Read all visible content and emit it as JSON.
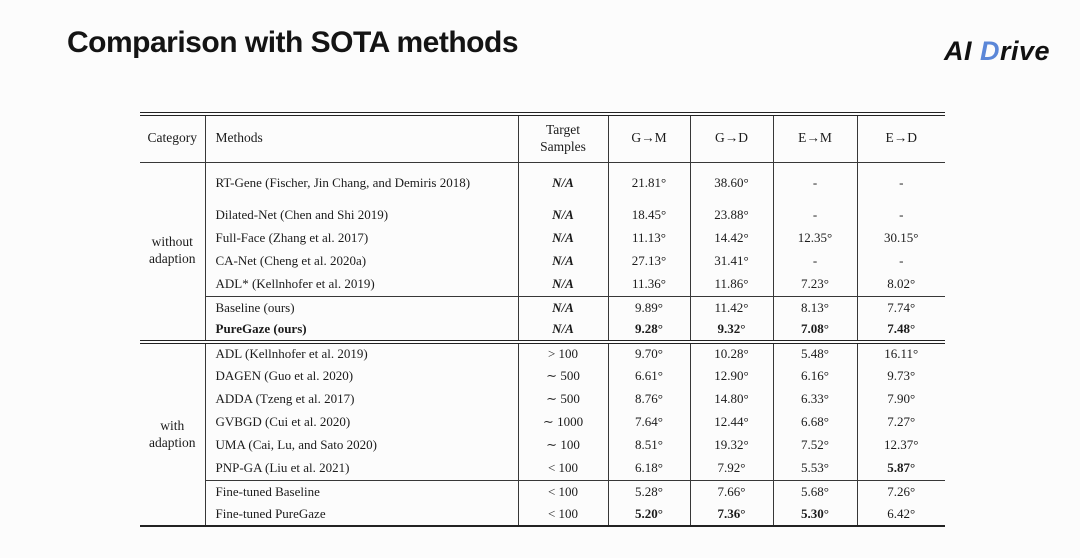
{
  "title": "Comparison with SOTA methods",
  "logo": {
    "prefix": "AI",
    "accent": "D",
    "suffix": "rive",
    "accent_color": "#5b87d8"
  },
  "table": {
    "columns": [
      "Category",
      "Methods",
      "Target Samples",
      "G→M",
      "G→D",
      "E→M",
      "E→D"
    ],
    "sections": [
      {
        "category": "without adaption",
        "rows": [
          {
            "method": "RT-Gene (Fischer, Jin Chang, and Demiris 2018)",
            "samples": "N/A",
            "values": [
              "21.81°",
              "38.60°",
              "-",
              "-"
            ],
            "bold": [
              false,
              false,
              false,
              false
            ],
            "method_bold": false,
            "sep_above": false,
            "tall": true
          },
          {
            "method": "Dilated-Net (Chen and Shi 2019)",
            "samples": "N/A",
            "values": [
              "18.45°",
              "23.88°",
              "-",
              "-"
            ],
            "bold": [
              false,
              false,
              false,
              false
            ],
            "method_bold": false,
            "sep_above": false,
            "tall": false
          },
          {
            "method": "Full-Face (Zhang et al. 2017)",
            "samples": "N/A",
            "values": [
              "11.13°",
              "14.42°",
              "12.35°",
              "30.15°"
            ],
            "bold": [
              false,
              false,
              false,
              false
            ],
            "method_bold": false,
            "sep_above": false,
            "tall": false
          },
          {
            "method": "CA-Net (Cheng et al. 2020a)",
            "samples": "N/A",
            "values": [
              "27.13°",
              "31.41°",
              "-",
              "-"
            ],
            "bold": [
              false,
              false,
              false,
              false
            ],
            "method_bold": false,
            "sep_above": false,
            "tall": false
          },
          {
            "method": "ADL* (Kellnhofer et al. 2019)",
            "samples": "N/A",
            "values": [
              "11.36°",
              "11.86°",
              "7.23°",
              "8.02°"
            ],
            "bold": [
              false,
              false,
              false,
              false
            ],
            "method_bold": false,
            "sep_above": false,
            "tall": false
          },
          {
            "method": "Baseline (ours)",
            "samples": "N/A",
            "values": [
              "9.89°",
              "11.42°",
              "8.13°",
              "7.74°"
            ],
            "bold": [
              false,
              false,
              false,
              false
            ],
            "method_bold": false,
            "sep_above": true,
            "tall": false
          },
          {
            "method": "PureGaze (ours)",
            "samples": "N/A",
            "values": [
              "9.28°",
              "9.32°",
              "7.08°",
              "7.48°"
            ],
            "bold": [
              true,
              true,
              true,
              true
            ],
            "method_bold": true,
            "sep_above": false,
            "tall": false
          }
        ]
      },
      {
        "category": "with adaption",
        "rows": [
          {
            "method": "ADL (Kellnhofer et al. 2019)",
            "samples": "> 100",
            "values": [
              "9.70°",
              "10.28°",
              "5.48°",
              "16.11°"
            ],
            "bold": [
              false,
              false,
              false,
              false
            ],
            "method_bold": false,
            "sep_above": false,
            "tall": false
          },
          {
            "method": "DAGEN (Guo et al. 2020)",
            "samples": "∼ 500",
            "values": [
              "6.61°",
              "12.90°",
              "6.16°",
              "9.73°"
            ],
            "bold": [
              false,
              false,
              false,
              false
            ],
            "method_bold": false,
            "sep_above": false,
            "tall": false
          },
          {
            "method": "ADDA (Tzeng et al. 2017)",
            "samples": "∼ 500",
            "values": [
              "8.76°",
              "14.80°",
              "6.33°",
              "7.90°"
            ],
            "bold": [
              false,
              false,
              false,
              false
            ],
            "method_bold": false,
            "sep_above": false,
            "tall": false
          },
          {
            "method": "GVBGD (Cui et al. 2020)",
            "samples": "∼ 1000",
            "values": [
              "7.64°",
              "12.44°",
              "6.68°",
              "7.27°"
            ],
            "bold": [
              false,
              false,
              false,
              false
            ],
            "method_bold": false,
            "sep_above": false,
            "tall": false
          },
          {
            "method": "UMA (Cai, Lu, and Sato 2020)",
            "samples": "∼ 100",
            "values": [
              "8.51°",
              "19.32°",
              "7.52°",
              "12.37°"
            ],
            "bold": [
              false,
              false,
              false,
              false
            ],
            "method_bold": false,
            "sep_above": false,
            "tall": false
          },
          {
            "method": "PNP-GA (Liu et al. 2021)",
            "samples": "< 100",
            "values": [
              "6.18°",
              "7.92°",
              "5.53°",
              "5.87°"
            ],
            "bold": [
              false,
              false,
              false,
              true
            ],
            "method_bold": false,
            "sep_above": false,
            "tall": false
          },
          {
            "method": "Fine-tuned Baseline",
            "samples": "< 100",
            "values": [
              "5.28°",
              "7.66°",
              "5.68°",
              "7.26°"
            ],
            "bold": [
              false,
              false,
              false,
              false
            ],
            "method_bold": false,
            "sep_above": true,
            "tall": false
          },
          {
            "method": "Fine-tuned PureGaze",
            "samples": "< 100",
            "values": [
              "5.20°",
              "7.36°",
              "5.30°",
              "6.42°"
            ],
            "bold": [
              true,
              true,
              true,
              false
            ],
            "method_bold": false,
            "sep_above": false,
            "tall": false
          }
        ]
      }
    ]
  }
}
